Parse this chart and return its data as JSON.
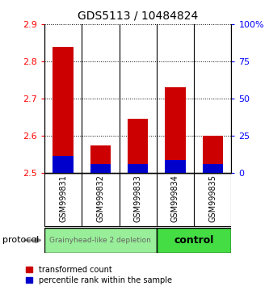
{
  "title": "GDS5113 / 10484824",
  "samples": [
    "GSM999831",
    "GSM999832",
    "GSM999833",
    "GSM999834",
    "GSM999835"
  ],
  "red_values": [
    2.84,
    2.575,
    2.645,
    2.73,
    2.6
  ],
  "blue_values": [
    2.545,
    2.525,
    2.525,
    2.535,
    2.525
  ],
  "bar_bottom": 2.5,
  "ylim_left": [
    2.5,
    2.9
  ],
  "ylim_right": [
    0,
    100
  ],
  "yticks_left": [
    2.5,
    2.6,
    2.7,
    2.8,
    2.9
  ],
  "yticks_right": [
    0,
    25,
    50,
    75,
    100
  ],
  "ytick_labels_right": [
    "0",
    "25",
    "50",
    "75",
    "100%"
  ],
  "red_color": "#cc0000",
  "blue_color": "#0000cc",
  "group1_label": "Grainyhead-like 2 depletion",
  "group2_label": "control",
  "group1_color": "#99ee99",
  "group2_color": "#44dd44",
  "group1_indices": [
    0,
    1,
    2
  ],
  "group2_indices": [
    3,
    4
  ],
  "protocol_label": "protocol",
  "legend_red": "transformed count",
  "legend_blue": "percentile rank within the sample",
  "background_color": "#ffffff",
  "bar_width": 0.55,
  "sep_color": "#000000",
  "tick_gray": "#cccccc",
  "title_fontsize": 10,
  "tick_fontsize": 8,
  "label_fontsize": 7
}
